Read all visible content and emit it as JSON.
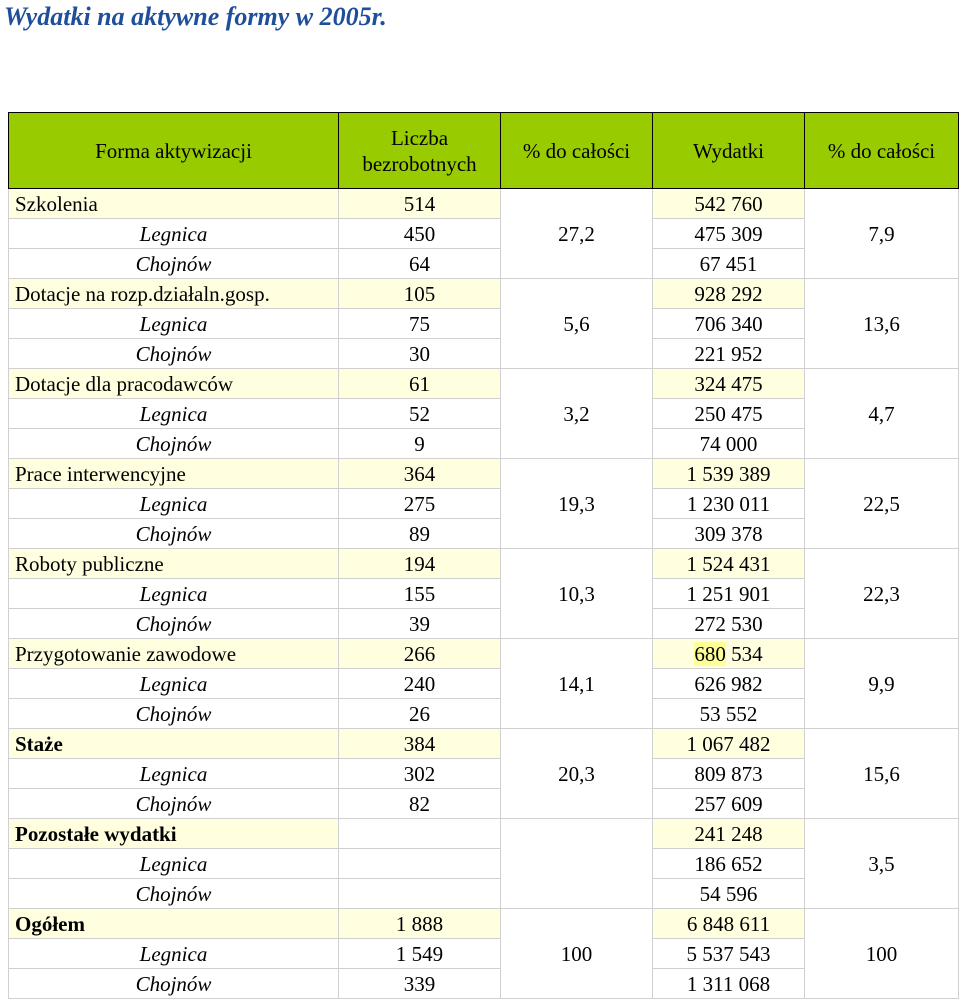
{
  "title": "Wydatki na aktywne formy w 2005r.",
  "headers": {
    "forma": "Forma aktywizacji",
    "liczba_line1": "Liczba",
    "liczba_line2": "bezrobotnych",
    "pct1": "% do całości",
    "wydatki": "Wydatki",
    "pct2": "% do całości"
  },
  "groups": [
    {
      "name": "Szkolenia",
      "bold": false,
      "total": {
        "liczba": "514",
        "wydatki": "542 760"
      },
      "legnica": {
        "label": "Legnica",
        "liczba": "450",
        "wydatki": "475 309"
      },
      "chojnow": {
        "label": "Chojnów",
        "liczba": "64",
        "wydatki": "67 451"
      },
      "pct_liczba": "27,2",
      "pct_wydatki": "7,9"
    },
    {
      "name": "Dotacje na rozp.działaln.gosp.",
      "bold": false,
      "total": {
        "liczba": "105",
        "wydatki": "928 292"
      },
      "legnica": {
        "label": "Legnica",
        "liczba": "75",
        "wydatki": "706 340"
      },
      "chojnow": {
        "label": "Chojnów",
        "liczba": "30",
        "wydatki": "221 952"
      },
      "pct_liczba": "5,6",
      "pct_wydatki": "13,6"
    },
    {
      "name": "Dotacje dla pracodawców",
      "bold": false,
      "total": {
        "liczba": "61",
        "wydatki": "324 475"
      },
      "legnica": {
        "label": "Legnica",
        "liczba": "52",
        "wydatki": "250 475"
      },
      "chojnow": {
        "label": "Chojnów",
        "liczba": "9",
        "wydatki": "74 000"
      },
      "pct_liczba": "3,2",
      "pct_wydatki": "4,7"
    },
    {
      "name": "Prace interwencyjne",
      "bold": false,
      "total": {
        "liczba": "364",
        "wydatki": "1 539 389"
      },
      "legnica": {
        "label": "Legnica",
        "liczba": "275",
        "wydatki": "1 230 011"
      },
      "chojnow": {
        "label": "Chojnów",
        "liczba": "89",
        "wydatki": "309 378"
      },
      "pct_liczba": "19,3",
      "pct_wydatki": "22,5"
    },
    {
      "name": "Roboty publiczne",
      "bold": false,
      "total": {
        "liczba": "194",
        "wydatki": "1 524 431"
      },
      "legnica": {
        "label": "Legnica",
        "liczba": "155",
        "wydatki": "1 251 901"
      },
      "chojnow": {
        "label": "Chojnów",
        "liczba": "39",
        "wydatki": "272 530"
      },
      "pct_liczba": "10,3",
      "pct_wydatki": "22,3"
    },
    {
      "name": "Przygotowanie zawodowe",
      "bold": false,
      "total": {
        "liczba": "266",
        "wydatki_hl": "680",
        "wydatki_rest": " 534"
      },
      "legnica": {
        "label": "Legnica",
        "liczba": "240",
        "wydatki": "626 982"
      },
      "chojnow": {
        "label": "Chojnów",
        "liczba": "26",
        "wydatki": "53 552"
      },
      "pct_liczba": "14,1",
      "pct_wydatki": "9,9"
    },
    {
      "name": "Staże",
      "bold": true,
      "total": {
        "liczba": "384",
        "wydatki": "1 067 482"
      },
      "legnica": {
        "label": "Legnica",
        "liczba": "302",
        "wydatki": "809 873"
      },
      "chojnow": {
        "label": "Chojnów",
        "liczba": "82",
        "wydatki": "257 609"
      },
      "pct_liczba": "20,3",
      "pct_wydatki": "15,6"
    },
    {
      "name": "Pozostałe wydatki",
      "bold": true,
      "total": {
        "liczba": "",
        "wydatki": "241 248"
      },
      "legnica": {
        "label": "Legnica",
        "liczba": "",
        "wydatki": "186 652"
      },
      "chojnow": {
        "label": "Chojnów",
        "liczba": "",
        "wydatki": "54 596"
      },
      "pct_liczba": "",
      "pct_wydatki": "3,5"
    },
    {
      "name": "Ogółem",
      "bold": true,
      "total": {
        "liczba": "1 888",
        "wydatki": "6 848 611"
      },
      "legnica": {
        "label": "Legnica",
        "liczba": "1 549",
        "wydatki": "5 537 543"
      },
      "chojnow": {
        "label": "Chojnów",
        "liczba": "339",
        "wydatki": "1 311 068"
      },
      "pct_liczba": "100",
      "pct_wydatki": "100"
    }
  ]
}
